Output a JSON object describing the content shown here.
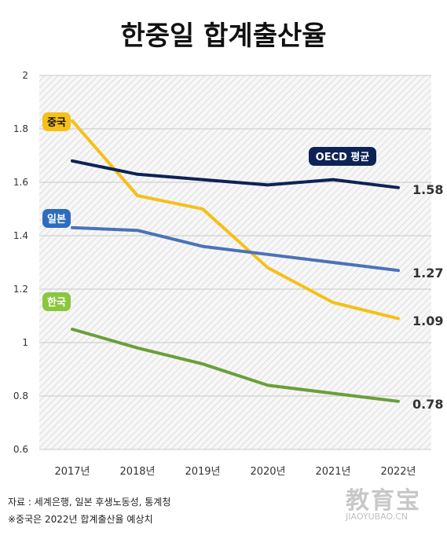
{
  "page": {
    "title": "한중일 합계출산율",
    "source": "자료 : 세계은행, 일본 후생노동성, 통계청",
    "note": "※중국은 2022년 합계출산율 예상치",
    "watermark": "教育宝",
    "watermark_url": "JIAOYUBAO.CN"
  },
  "chart_data": {
    "type": "line",
    "title": "한중일 합계출산율",
    "x": [
      "2017년",
      "2018년",
      "2019년",
      "2020년",
      "2021년",
      "2022년"
    ],
    "ylim": [
      0.6,
      2.0
    ],
    "yticks": [
      "2",
      "1.8",
      "1.6",
      "1.4",
      "1.2",
      "1",
      "0.8",
      "0.6"
    ],
    "grid": true,
    "series": [
      {
        "name": "중국",
        "color": "#f5c018",
        "label_bg": "#f5c018",
        "label_fg": "#111111",
        "values": [
          1.83,
          1.55,
          1.5,
          1.28,
          1.15,
          1.09
        ],
        "end_label": "1.09"
      },
      {
        "name": "OECD 평균",
        "color": "#0d2356",
        "label_bg": "#0d2356",
        "label_fg": "#ffffff",
        "values": [
          1.68,
          1.63,
          1.61,
          1.59,
          1.61,
          1.58
        ],
        "end_label": "1.58"
      },
      {
        "name": "일본",
        "color": "#4a73b8",
        "label_bg": "#2e6cc0",
        "label_fg": "#ffffff",
        "values": [
          1.43,
          1.42,
          1.36,
          1.33,
          1.3,
          1.27
        ],
        "end_label": "1.27"
      },
      {
        "name": "한국",
        "color": "#6a9f3a",
        "label_bg": "#8cc63e",
        "label_fg": "#ffffff",
        "values": [
          1.05,
          0.98,
          0.92,
          0.84,
          0.81,
          0.78
        ],
        "end_label": "0.78"
      }
    ]
  }
}
